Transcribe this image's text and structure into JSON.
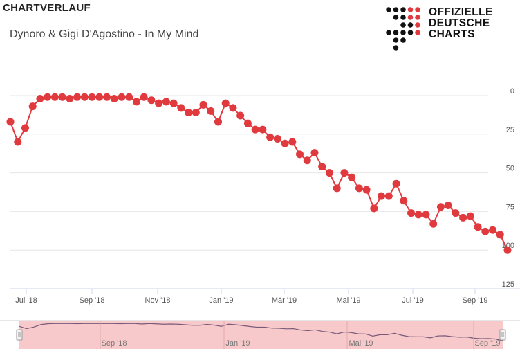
{
  "header": {
    "title": "CHARTVERLAUF",
    "song": "Dynoro & Gigi D'Agostino - In My Mind"
  },
  "logo": {
    "lines": [
      "OFFIZIELLE",
      "DEUTSCHE",
      "CHARTS"
    ],
    "accent": "#e03a3e",
    "dark": "#111111"
  },
  "chart_data": {
    "type": "line",
    "y_reversed": true,
    "ylim": [
      0,
      125
    ],
    "y_ticks": [
      0,
      25,
      50,
      75,
      100,
      125
    ],
    "x_ticks": [
      "Jul '18",
      "Sep '18",
      "Nov '18",
      "Jan '19",
      "Mär '19",
      "Mai '19",
      "Jul '19",
      "Sep '19"
    ],
    "navigator_ticks": [
      "Sep '18",
      "Jan '19",
      "Mai '19",
      "Sep '19"
    ],
    "series": [
      {
        "color": "#e03a3e",
        "values": [
          17,
          30,
          21,
          7,
          2,
          1,
          1,
          1,
          2,
          1,
          1,
          1,
          1,
          1,
          2,
          1,
          1,
          4,
          1,
          3,
          5,
          4,
          5,
          8,
          11,
          11,
          6,
          10,
          17,
          5,
          8,
          13,
          18,
          22,
          22,
          27,
          28,
          31,
          30,
          38,
          42,
          37,
          46,
          50,
          60,
          50,
          53,
          60,
          61,
          73,
          65,
          65,
          57,
          68,
          76,
          77,
          77,
          83,
          72,
          71,
          76,
          79,
          78,
          85,
          88,
          87,
          90,
          100
        ]
      }
    ]
  }
}
